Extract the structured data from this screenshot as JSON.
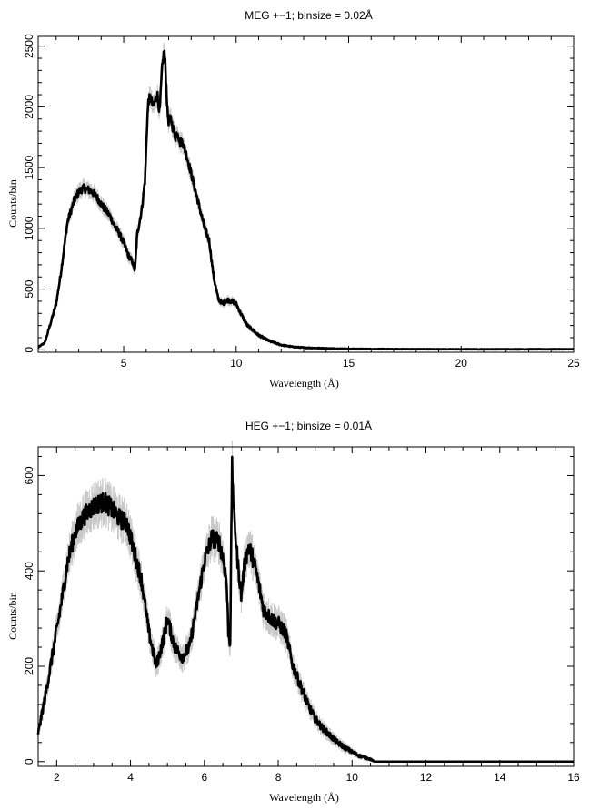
{
  "chart_data": [
    {
      "type": "line",
      "title": "MEG +−1; binsize = 0.02Å",
      "xlabel": "Wavelength (Å)",
      "ylabel": "Counts/bin",
      "xlim": [
        1.2,
        25
      ],
      "ylim": [
        -20,
        2580
      ],
      "xticks": [
        5,
        10,
        15,
        20,
        25
      ],
      "yticks": [
        0,
        500,
        1000,
        1500,
        2000,
        2500
      ],
      "grid": false,
      "series": [
        {
          "x": [
            1.2,
            1.5,
            1.8,
            2.0,
            2.2,
            2.5,
            2.8,
            3.0,
            3.2,
            3.4,
            3.6,
            3.8,
            4.0,
            4.2,
            4.4,
            4.6,
            4.8,
            5.0,
            5.2,
            5.4,
            5.5,
            5.6,
            5.8,
            5.95,
            6.05,
            6.1,
            6.2,
            6.3,
            6.4,
            6.5,
            6.6,
            6.7,
            6.8,
            6.85,
            6.9,
            6.95,
            7.0,
            7.1,
            7.2,
            7.3,
            7.4,
            7.5,
            7.6,
            7.8,
            8.0,
            8.2,
            8.4,
            8.6,
            8.8,
            9.0,
            9.2,
            9.4,
            9.6,
            9.8,
            10.0,
            10.2,
            10.5,
            11.0,
            11.5,
            12.0,
            12.5,
            13.0,
            14.0,
            15.0,
            17.0,
            20.0,
            25.0
          ],
          "y": [
            20,
            60,
            250,
            380,
            620,
            1050,
            1230,
            1300,
            1330,
            1320,
            1300,
            1260,
            1200,
            1150,
            1100,
            1020,
            960,
            880,
            780,
            720,
            650,
            950,
            1150,
            1400,
            1900,
            2050,
            2080,
            2000,
            2050,
            2100,
            1950,
            2300,
            2470,
            2350,
            2150,
            1950,
            1880,
            1900,
            1820,
            1750,
            1800,
            1700,
            1720,
            1600,
            1450,
            1300,
            1150,
            1000,
            900,
            600,
            420,
            380,
            410,
            400,
            380,
            300,
            200,
            120,
            70,
            40,
            25,
            18,
            12,
            8,
            6,
            5,
            5
          ]
        }
      ]
    },
    {
      "type": "line",
      "title": "HEG +−1; binsize = 0.01Å",
      "xlabel": "Wavelength (Å)",
      "ylabel": "Counts/bin",
      "xlim": [
        1.5,
        16
      ],
      "ylim": [
        -10,
        660
      ],
      "xticks": [
        2,
        4,
        6,
        8,
        10,
        12,
        14,
        16
      ],
      "yticks": [
        0,
        200,
        400,
        600
      ],
      "grid": false,
      "series": [
        {
          "x": [
            1.5,
            1.7,
            1.9,
            2.1,
            2.3,
            2.5,
            2.7,
            2.9,
            3.1,
            3.3,
            3.5,
            3.7,
            3.9,
            4.1,
            4.3,
            4.5,
            4.7,
            4.9,
            5.0,
            5.2,
            5.4,
            5.6,
            5.8,
            6.0,
            6.2,
            6.4,
            6.5,
            6.6,
            6.65,
            6.7,
            6.75,
            6.8,
            6.9,
            7.0,
            7.1,
            7.2,
            7.3,
            7.4,
            7.6,
            7.8,
            8.0,
            8.2,
            8.4,
            8.6,
            8.8,
            9.0,
            9.2,
            9.4,
            9.6,
            9.8,
            10.0,
            10.2,
            10.5,
            10.6,
            11.0,
            12.0,
            14.0,
            16.0
          ],
          "y": [
            60,
            140,
            230,
            320,
            420,
            480,
            510,
            530,
            540,
            545,
            530,
            510,
            500,
            440,
            380,
            270,
            200,
            260,
            300,
            240,
            220,
            240,
            330,
            420,
            470,
            460,
            430,
            380,
            270,
            250,
            620,
            520,
            420,
            350,
            420,
            450,
            430,
            400,
            320,
            300,
            290,
            270,
            200,
            160,
            120,
            90,
            70,
            55,
            40,
            30,
            20,
            12,
            5,
            0,
            0,
            0,
            0,
            0
          ]
        }
      ]
    }
  ]
}
